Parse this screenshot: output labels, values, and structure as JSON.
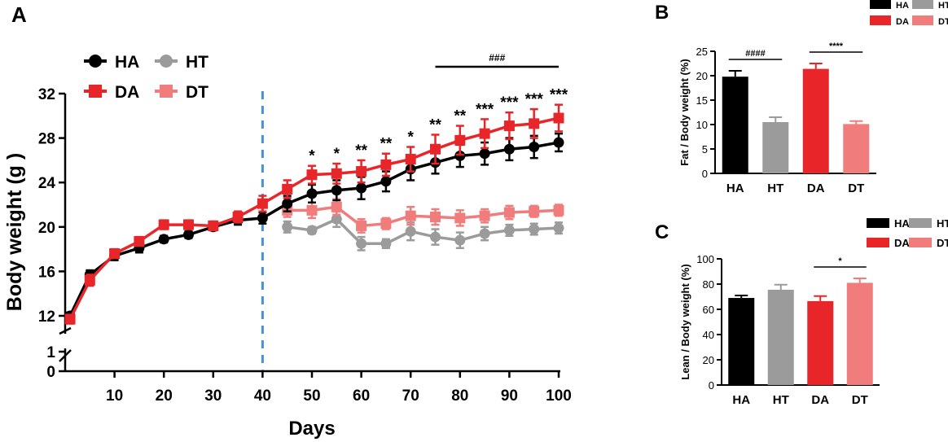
{
  "chart_data": [
    {
      "panel": "A",
      "type": "line",
      "xlabel": "Days",
      "ylabel": "Body weight (g )",
      "xlim": [
        0,
        100
      ],
      "x_ticks": [
        10,
        20,
        30,
        40,
        50,
        60,
        70,
        80,
        90,
        100
      ],
      "y_ticks_upper": [
        12,
        16,
        20,
        24,
        28,
        32
      ],
      "y_ticks_lower": [
        0,
        1
      ],
      "axis_break": "y between 1 and 12",
      "vline_day": 40,
      "legend": [
        "HA",
        "HT",
        "DA",
        "DT"
      ],
      "colors": {
        "HA": "#000000",
        "HT": "#9b9b9b",
        "DA": "#e8262a",
        "DT": "#f07c7c",
        "vline": "#4a90d9"
      },
      "series": [
        {
          "name": "HA",
          "x": [
            1,
            5,
            10,
            15,
            20,
            25,
            30,
            35,
            40,
            45,
            50,
            55,
            60,
            65,
            70,
            75,
            80,
            85,
            90,
            95,
            100
          ],
          "values": [
            12.0,
            15.7,
            17.4,
            18.1,
            18.9,
            19.3,
            20.0,
            20.6,
            20.8,
            22.1,
            23.0,
            23.3,
            23.5,
            24.1,
            25.2,
            25.8,
            26.4,
            26.6,
            27.0,
            27.2,
            27.6
          ],
          "errors": [
            0.3,
            0.4,
            0.4,
            0.4,
            0.3,
            0.3,
            0.3,
            0.4,
            0.5,
            0.7,
            0.8,
            0.9,
            1.0,
            0.9,
            1.0,
            1.0,
            1.0,
            1.0,
            1.0,
            1.0,
            0.8
          ]
        },
        {
          "name": "DA",
          "x": [
            1,
            5,
            10,
            15,
            20,
            25,
            30,
            35,
            40,
            45,
            50,
            55,
            60,
            65,
            70,
            75,
            80,
            85,
            90,
            95,
            100
          ],
          "values": [
            11.7,
            15.2,
            17.6,
            18.7,
            20.2,
            20.2,
            20.1,
            20.9,
            22.1,
            23.4,
            24.7,
            24.8,
            25.0,
            25.6,
            26.1,
            27.0,
            27.8,
            28.4,
            29.1,
            29.3,
            29.8
          ],
          "errors": [
            0.4,
            0.5,
            0.4,
            0.4,
            0.4,
            0.4,
            0.4,
            0.5,
            0.7,
            0.8,
            0.8,
            0.9,
            1.0,
            1.0,
            1.1,
            1.3,
            1.3,
            1.3,
            1.2,
            1.3,
            1.2
          ]
        },
        {
          "name": "HT",
          "x": [
            45,
            50,
            55,
            60,
            65,
            70,
            75,
            80,
            85,
            90,
            95,
            100
          ],
          "values": [
            20.0,
            19.7,
            20.7,
            18.5,
            18.5,
            19.6,
            19.1,
            18.8,
            19.4,
            19.7,
            19.8,
            19.9
          ],
          "errors": [
            0.5,
            0.3,
            0.7,
            0.6,
            0.4,
            0.8,
            0.7,
            0.7,
            0.6,
            0.5,
            0.5,
            0.5
          ]
        },
        {
          "name": "DT",
          "x": [
            45,
            50,
            55,
            60,
            65,
            70,
            75,
            80,
            85,
            90,
            95,
            100
          ],
          "values": [
            21.5,
            21.5,
            21.8,
            20.1,
            20.3,
            21.0,
            20.9,
            20.8,
            21.0,
            21.3,
            21.4,
            21.5
          ],
          "errors": [
            0.6,
            0.7,
            0.7,
            0.6,
            0.5,
            0.8,
            0.7,
            0.7,
            0.6,
            0.6,
            0.5,
            0.5
          ]
        }
      ],
      "annotations": [
        {
          "x": 50,
          "text": "*"
        },
        {
          "x": 55,
          "text": "*"
        },
        {
          "x": 60,
          "text": "**"
        },
        {
          "x": 65,
          "text": "**"
        },
        {
          "x": 70,
          "text": "*"
        },
        {
          "x": 75,
          "text": "**"
        },
        {
          "x": 80,
          "text": "**"
        },
        {
          "x": 85,
          "text": "***"
        },
        {
          "x": 90,
          "text": "***"
        },
        {
          "x": 95,
          "text": "***"
        },
        {
          "x": 100,
          "text": "***"
        }
      ],
      "bracket": {
        "x_start": 75,
        "x_end": 100,
        "text": "###"
      }
    },
    {
      "panel": "B",
      "type": "bar",
      "categories": [
        "HA",
        "HT",
        "DA",
        "DT"
      ],
      "values": [
        19.8,
        10.5,
        21.4,
        10.1
      ],
      "errors": [
        1.2,
        1.0,
        1.1,
        0.6
      ],
      "ylabel": "Fat / Body weight (%)",
      "ylim": [
        0,
        25
      ],
      "y_ticks": [
        0,
        5,
        10,
        15,
        20,
        25
      ],
      "colors": [
        "#000000",
        "#9b9b9b",
        "#e8262a",
        "#f07c7c"
      ],
      "legend": [
        "HA",
        "HT",
        "DA",
        "DT"
      ],
      "brackets": [
        {
          "from": "HA",
          "to": "HT",
          "text": "####"
        },
        {
          "from": "DA",
          "to": "DT",
          "text": "****"
        }
      ]
    },
    {
      "panel": "C",
      "type": "bar",
      "categories": [
        "HA",
        "HT",
        "DA",
        "DT"
      ],
      "values": [
        69,
        75.5,
        66.5,
        81
      ],
      "errors": [
        2,
        4,
        4,
        3.5
      ],
      "ylabel": "Lean / Body weight (%)",
      "ylim": [
        0,
        100
      ],
      "y_ticks": [
        0,
        20,
        40,
        60,
        80,
        100
      ],
      "colors": [
        "#000000",
        "#9b9b9b",
        "#e8262a",
        "#f07c7c"
      ],
      "legend": [
        "HA",
        "HT",
        "DA",
        "DT"
      ],
      "brackets": [
        {
          "from": "DA",
          "to": "DT",
          "text": "*"
        }
      ]
    }
  ]
}
